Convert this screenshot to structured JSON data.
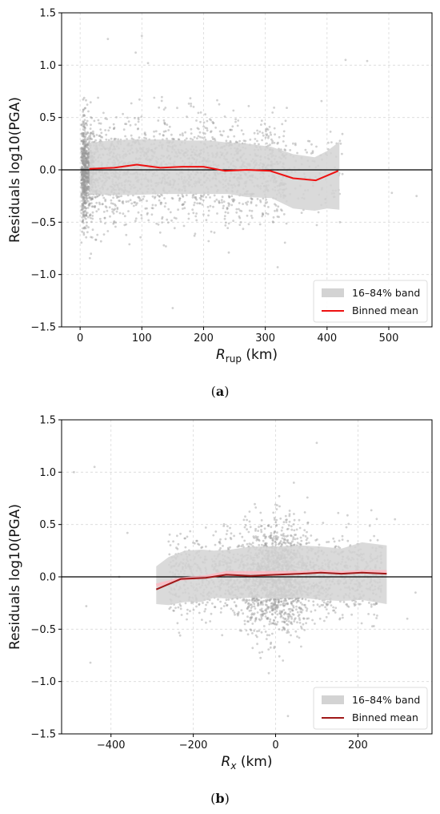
{
  "chart_data": [
    {
      "type": "scatter",
      "panel_label": "(a)",
      "xlabel_main": "R",
      "xlabel_sub": "rup",
      "xlabel_unit": "(km)",
      "ylabel": "Residuals log10(PGA)",
      "xlim": [
        -30,
        570
      ],
      "ylim": [
        -1.5,
        1.5
      ],
      "xticks": [
        0,
        100,
        200,
        300,
        400,
        500
      ],
      "xtick_labels": [
        "0",
        "100",
        "200",
        "300",
        "400",
        "500"
      ],
      "yticks": [
        -1.5,
        -1.0,
        -0.5,
        0.0,
        0.5,
        1.0,
        1.5
      ],
      "ytick_labels": [
        "−1.5",
        "−1.0",
        "−0.5",
        "0.0",
        "0.5",
        "1.0",
        "1.5"
      ],
      "grid": true,
      "zero_line": 0,
      "legend": {
        "placement": "lower-right",
        "entries": [
          {
            "label": "16–84% band",
            "kind": "band",
            "color": "#d3d3d3"
          },
          {
            "label": "Binned mean",
            "kind": "line",
            "color": "#ee1111"
          }
        ]
      },
      "band": {
        "x": [
          15,
          50,
          90,
          130,
          170,
          210,
          240,
          270,
          310,
          345,
          380,
          400,
          420
        ],
        "y_low": [
          -0.23,
          -0.24,
          -0.24,
          -0.23,
          -0.23,
          -0.23,
          -0.23,
          -0.26,
          -0.27,
          -0.37,
          -0.39,
          -0.37,
          -0.38
        ],
        "y_high": [
          0.26,
          0.28,
          0.29,
          0.29,
          0.28,
          0.28,
          0.26,
          0.25,
          0.22,
          0.15,
          0.12,
          0.18,
          0.27
        ]
      },
      "binned_mean": {
        "x": [
          15,
          55,
          92,
          130,
          165,
          200,
          235,
          270,
          308,
          345,
          382,
          418
        ],
        "y": [
          0.01,
          0.02,
          0.05,
          0.02,
          0.03,
          0.03,
          -0.01,
          0.0,
          -0.01,
          -0.08,
          -0.1,
          -0.01
        ],
        "color": "#ee1111"
      },
      "scatter": {
        "color": "#9a9a9a",
        "approx_points": 7000,
        "x_range": [
          0,
          550
        ],
        "outliers": [
          [
            45,
            1.25
          ],
          [
            90,
            1.12
          ],
          [
            100,
            1.28
          ],
          [
            110,
            1.02
          ],
          [
            430,
            1.05
          ],
          [
            465,
            1.04
          ],
          [
            505,
            -0.22
          ],
          [
            545,
            -0.25
          ],
          [
            150,
            -1.32
          ],
          [
            320,
            -0.93
          ]
        ]
      }
    },
    {
      "type": "scatter",
      "panel_label": "(b)",
      "xlabel_main": "R",
      "xlabel_sub": "x",
      "xlabel_unit": "(km)",
      "ylabel": "Residuals log10(PGA)",
      "xlim": [
        -520,
        380
      ],
      "ylim": [
        -1.5,
        1.5
      ],
      "xticks": [
        -400,
        -200,
        0,
        200
      ],
      "xtick_labels": [
        "−400",
        "−200",
        "0",
        "200"
      ],
      "yticks": [
        -1.5,
        -1.0,
        -0.5,
        0.0,
        0.5,
        1.0,
        1.5
      ],
      "ytick_labels": [
        "−1.5",
        "−1.0",
        "−0.5",
        "0.0",
        "0.5",
        "1.0",
        "1.5"
      ],
      "grid": true,
      "zero_line": 0,
      "legend": {
        "placement": "lower-right",
        "entries": [
          {
            "label": "16–84% band",
            "kind": "band",
            "color": "#d3d3d3"
          },
          {
            "label": "Binned mean",
            "kind": "line",
            "color": "#a01818"
          }
        ]
      },
      "band": {
        "x": [
          -290,
          -260,
          -220,
          -180,
          -150,
          -110,
          -60,
          0,
          60,
          110,
          160,
          210,
          270
        ],
        "y_low": [
          -0.26,
          -0.27,
          -0.24,
          -0.24,
          -0.2,
          -0.21,
          -0.2,
          -0.21,
          -0.2,
          -0.22,
          -0.23,
          -0.22,
          -0.26
        ],
        "y_high": [
          0.1,
          0.19,
          0.25,
          0.26,
          0.25,
          0.26,
          0.29,
          0.29,
          0.3,
          0.29,
          0.27,
          0.33,
          0.3
        ]
      },
      "highlight": {
        "x": [
          -290,
          -230,
          -170,
          -120,
          -60,
          0,
          60,
          110,
          160,
          210,
          270
        ],
        "y": [
          -0.08,
          -0.02,
          0.0,
          0.04,
          0.04,
          0.04,
          0.04,
          0.05,
          0.04,
          0.05,
          0.05
        ],
        "color": "#ffb6c1"
      },
      "binned_mean": {
        "x": [
          -290,
          -230,
          -170,
          -120,
          -60,
          0,
          60,
          110,
          160,
          210,
          270
        ],
        "y": [
          -0.12,
          -0.02,
          -0.01,
          0.02,
          0.01,
          0.02,
          0.03,
          0.04,
          0.03,
          0.04,
          0.03
        ],
        "color": "#a01818"
      },
      "scatter": {
        "color": "#9a9a9a",
        "approx_points": 7000,
        "x_range": [
          -500,
          360
        ],
        "outliers": [
          [
            -490,
            1.0
          ],
          [
            -440,
            1.05
          ],
          [
            -360,
            0.42
          ],
          [
            -380,
            0.0
          ],
          [
            -460,
            -0.28
          ],
          [
            -450,
            -0.82
          ],
          [
            290,
            0.55
          ],
          [
            340,
            -0.15
          ],
          [
            320,
            -0.4
          ],
          [
            100,
            1.28
          ],
          [
            30,
            -1.33
          ]
        ]
      }
    }
  ]
}
